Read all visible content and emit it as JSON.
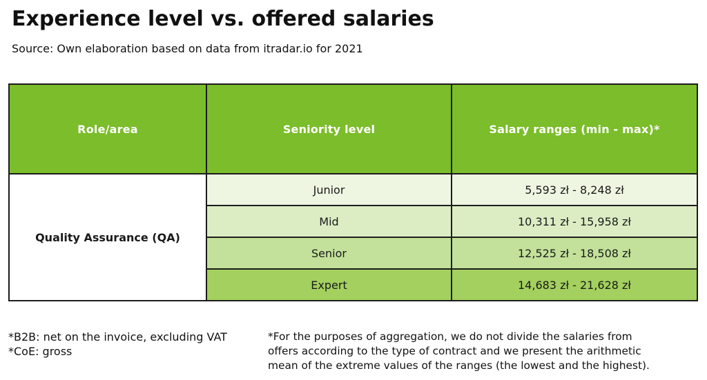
{
  "title": "Experience level vs. offered salaries",
  "subtitle": "Source: Own elaboration based on data from itradar.io for 2021",
  "colors": {
    "header_green": "#7bbd2a",
    "row_junior": "#eef6e2",
    "row_mid": "#dcedc4",
    "row_senior": "#c3e19a",
    "row_expert": "#a3d05e",
    "border": "#1b1b1b"
  },
  "table": {
    "headers": {
      "role": "Role/area",
      "seniority": "Seniority level",
      "salary": "Salary ranges (min - max)*"
    },
    "role": "Quality Assurance (QA)",
    "rows": [
      {
        "level": "Junior",
        "salary": "5,593 zł - 8,248 zł"
      },
      {
        "level": "Mid",
        "salary": "10,311 zł - 15,958 zł"
      },
      {
        "level": "Senior",
        "salary": "12,525 zł - 18,508 zł"
      },
      {
        "level": "Expert",
        "salary": "14,683 zł - 21,628 zł"
      }
    ]
  },
  "footnotes": {
    "b2b": "*B2B: net on the invoice, excluding VAT",
    "coe": "*CoE: gross",
    "aggregation_lines": [
      "*For the purposes of aggregation, we do not divide the salaries from",
      "offers according to the type of contract and we present the arithmetic",
      "mean of the extreme values of the ranges (the lowest and the highest)."
    ]
  }
}
